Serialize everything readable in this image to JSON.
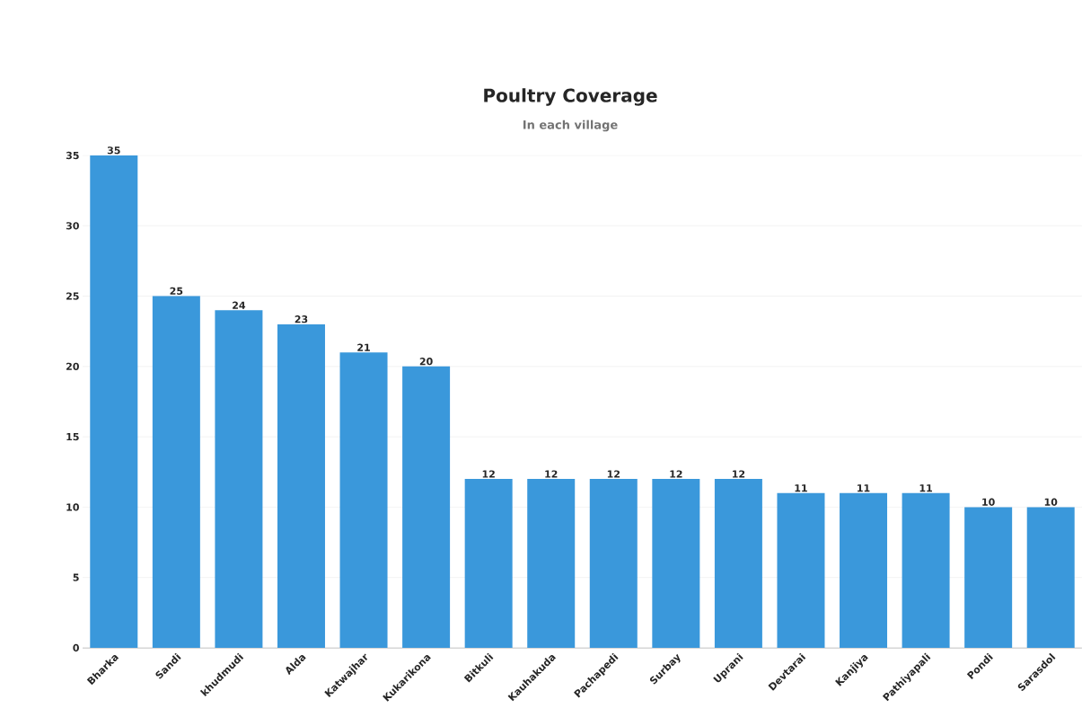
{
  "chart_data": {
    "type": "bar",
    "title": "Poultry Coverage",
    "subtitle": "In each village",
    "categories": [
      "Bharka",
      "Sandi",
      "khudmudi",
      "Alda",
      "Katwajhar",
      "Kukarikona",
      "Bitkuli",
      "Kauhakuda",
      "Pachapedi",
      "Surbay",
      "Uprani",
      "Devtarai",
      "Kanjiya",
      "Pathiyapali",
      "Pondi",
      "Sarasdol"
    ],
    "values": [
      35,
      25,
      24,
      23,
      21,
      20,
      12,
      12,
      12,
      12,
      12,
      11,
      11,
      11,
      10,
      10
    ],
    "color": "#3a98db",
    "ylim": [
      0,
      35
    ],
    "yticks": [
      0,
      5,
      10,
      15,
      20,
      25,
      30,
      35
    ],
    "grid": "y",
    "data_labels": true
  }
}
